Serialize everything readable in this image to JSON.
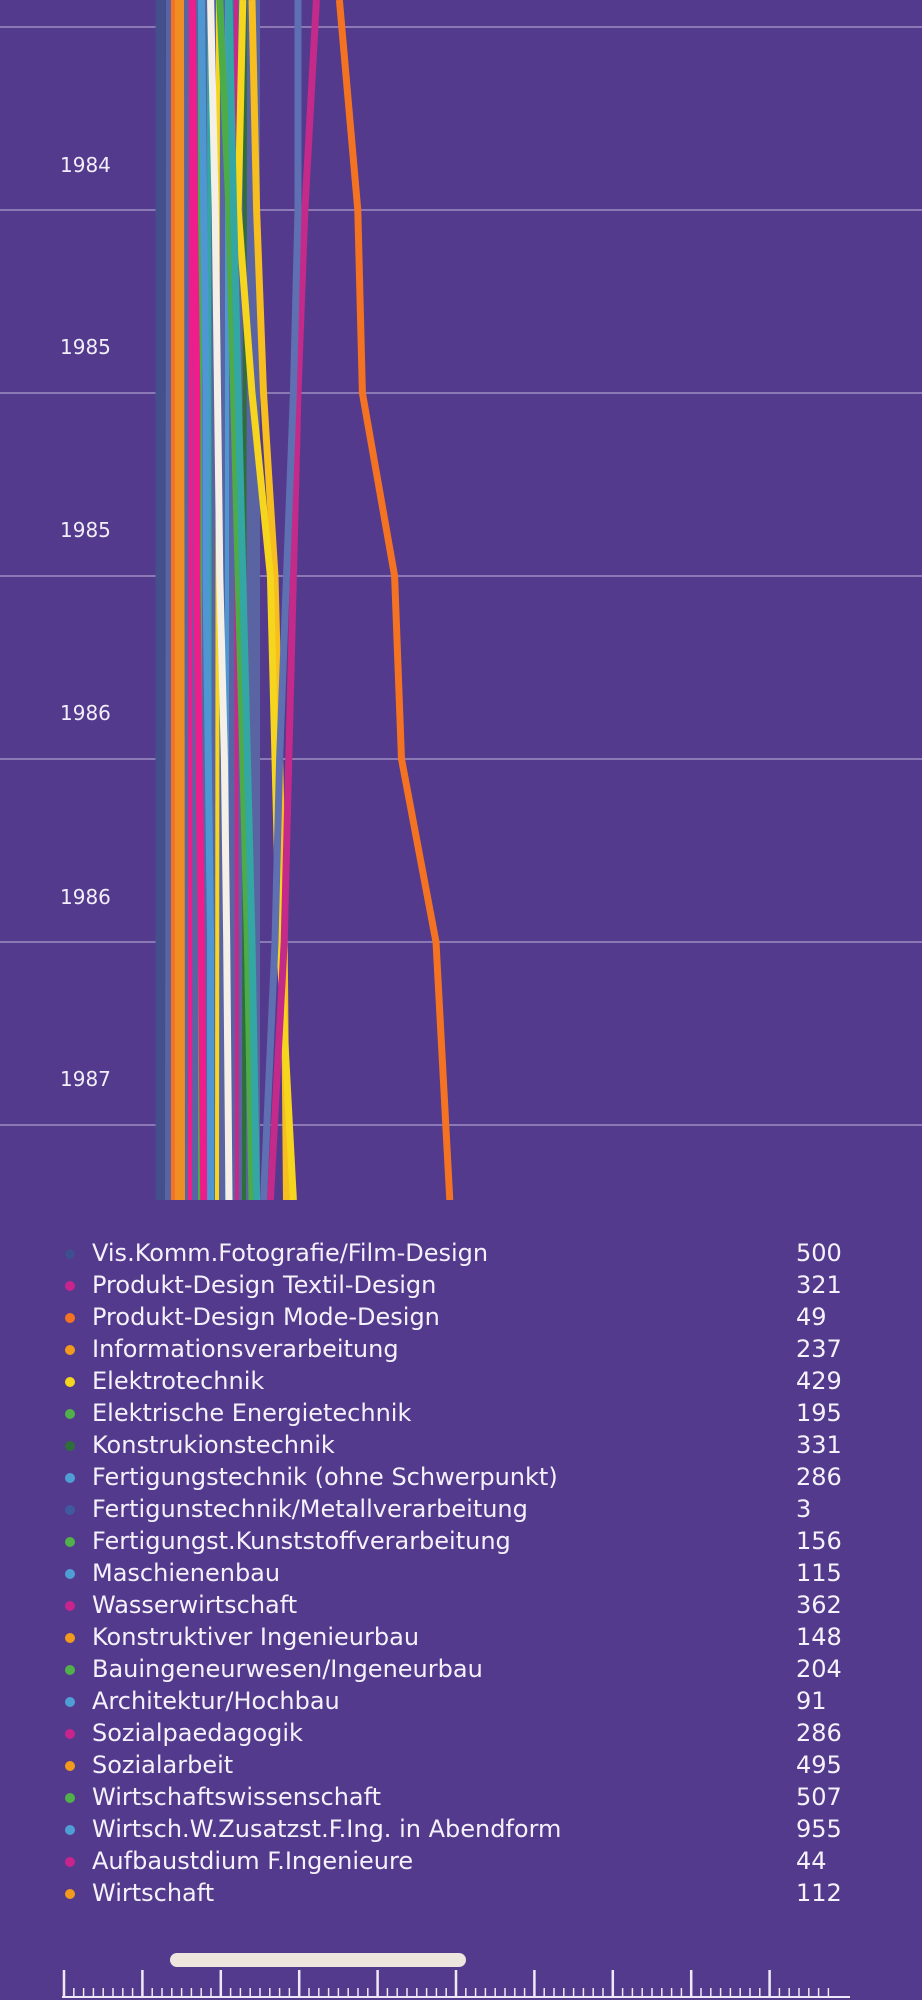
{
  "chart_data": {
    "type": "line",
    "orientation": "vertical-time",
    "y_tick_labels": [
      "1984",
      "1985",
      "1985",
      "1986",
      "1986",
      "1987"
    ],
    "grid": true,
    "series": [
      {
        "color": "#43508c",
        "values": [
          0,
          0,
          0,
          0,
          0,
          0,
          0
        ]
      },
      {
        "color": "#f47322",
        "values": [
          78,
          86,
          88,
          102,
          105,
          120,
          126
        ]
      },
      {
        "color": "#ef8e22",
        "values": [
          8,
          8,
          8,
          8,
          8,
          8,
          8
        ]
      },
      {
        "color": "#ef1c8c",
        "values": [
          14,
          15,
          16,
          16,
          17,
          18,
          19
        ]
      },
      {
        "color": "#f6be1e",
        "values": [
          40,
          42,
          45,
          50,
          52,
          54,
          55
        ]
      },
      {
        "color": "#f6d51e",
        "values": [
          36,
          34,
          40,
          48,
          50,
          52,
          58
        ]
      },
      {
        "color": "#4dab48",
        "values": [
          26,
          30,
          32,
          34,
          36,
          38,
          40
        ]
      },
      {
        "color": "#c32a8a",
        "values": [
          68,
          63,
          60,
          58,
          56,
          54,
          48
        ]
      },
      {
        "color": "#5e6fb2",
        "values": [
          60,
          60,
          58,
          55,
          52,
          50,
          45
        ]
      },
      {
        "color": "#34a6a3",
        "values": [
          30,
          32,
          34,
          36,
          38,
          40,
          42
        ]
      },
      {
        "color": "#f4f0e8",
        "values": [
          22,
          24,
          25,
          26,
          28,
          29,
          30
        ]
      },
      {
        "color": "#4f97d2",
        "values": [
          18,
          19,
          20,
          20,
          21,
          22,
          22
        ]
      }
    ],
    "legend": [
      {
        "label": "Vis.Komm.Fotografie/Film-Design",
        "value": "500",
        "color": "#3f4e8e"
      },
      {
        "label": "Produkt-Design Textil-Design",
        "value": "321",
        "color": "#c8248e"
      },
      {
        "label": "Produkt-Design Mode-Design",
        "value": "49",
        "color": "#f47322"
      },
      {
        "label": "Informationsverarbeitung",
        "value": "237",
        "color": "#f29a1e"
      },
      {
        "label": "Elektrotechnik",
        "value": "429",
        "color": "#f6d51e"
      },
      {
        "label": "Elektrische Energietechnik",
        "value": "195",
        "color": "#52b04a"
      },
      {
        "label": "Konstrukionstechnik",
        "value": "331",
        "color": "#2f6e3a"
      },
      {
        "label": "Fertigungstechnik (ohne Schwerpunkt)",
        "value": "286",
        "color": "#4f9fd6"
      },
      {
        "label": "Fertigunstechnik/Metallverarbeitung",
        "value": "3",
        "color": "#3f5a9e"
      },
      {
        "label": "Fertigungst.Kunststoffverarbeitung",
        "value": "156",
        "color": "#52b04a"
      },
      {
        "label": "Maschienenbau",
        "value": "115",
        "color": "#4f9fd6"
      },
      {
        "label": "Wasserwirtschaft",
        "value": "362",
        "color": "#c8248e"
      },
      {
        "label": "Konstruktiver Ingenieurbau",
        "value": "148",
        "color": "#f29a1e"
      },
      {
        "label": "Bauingeneurwesen/Ingeneurbau",
        "value": "204",
        "color": "#52b04a"
      },
      {
        "label": "Architektur/Hochbau",
        "value": "91",
        "color": "#4f9fd6"
      },
      {
        "label": "Sozialpaedagogik",
        "value": "286",
        "color": "#c8248e"
      },
      {
        "label": "Sozialarbeit",
        "value": "495",
        "color": "#f29a1e"
      },
      {
        "label": "Wirtschaftswissenschaft",
        "value": "507",
        "color": "#52b04a"
      },
      {
        "label": "Wirtsch.W.Zusatzst.F.Ing. in Abendform",
        "value": "955",
        "color": "#4f9fd6"
      },
      {
        "label": "Aufbaustdium F.Ingenieure",
        "value": "44",
        "color": "#c8248e"
      },
      {
        "label": "Wirtschaft",
        "value": "112",
        "color": "#f29a1e"
      }
    ]
  },
  "colors": {
    "background": "#533a8c",
    "gridline": "#8a79b5",
    "scroll_thumb": "#ece6df"
  }
}
